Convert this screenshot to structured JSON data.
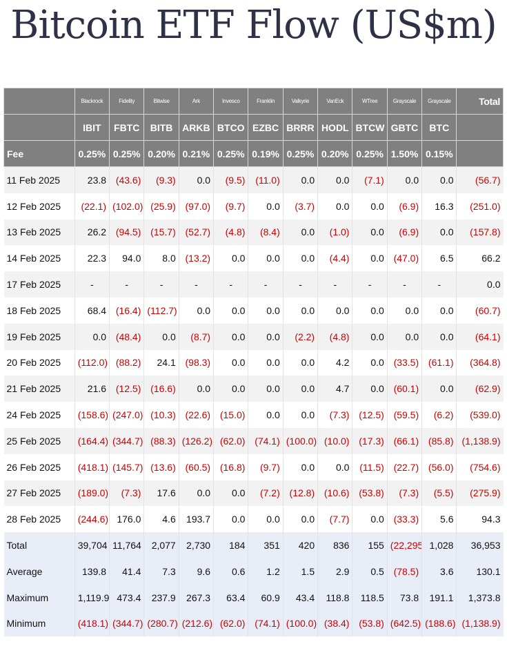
{
  "title": "Bitcoin ETF Flow (US$m)",
  "header": {
    "providers": [
      "Blackrock",
      "Fidelity",
      "Bitwise",
      "Ark",
      "Invesco",
      "Franklin",
      "Valkyrie",
      "VanEck",
      "WTree",
      "Grayscale",
      "Grayscale"
    ],
    "total_label": "Total",
    "tickers": [
      "IBIT",
      "FBTC",
      "BITB",
      "ARKB",
      "BTCO",
      "EZBC",
      "BRRR",
      "HODL",
      "BTCW",
      "GBTC",
      "BTC"
    ],
    "fee_label": "Fee",
    "fees": [
      "0.25%",
      "0.25%",
      "0.20%",
      "0.21%",
      "0.25%",
      "0.19%",
      "0.25%",
      "0.20%",
      "0.25%",
      "1.50%",
      "0.15%"
    ]
  },
  "rows": [
    {
      "date": "11 Feb 2025",
      "values": [
        "23.8",
        "(43.6)",
        "(9.3)",
        "0.0",
        "(9.5)",
        "(11.0)",
        "0.0",
        "0.0",
        "(7.1)",
        "0.0",
        "0.0"
      ],
      "total": "(56.7)"
    },
    {
      "date": "12 Feb 2025",
      "values": [
        "(22.1)",
        "(102.0)",
        "(25.9)",
        "(97.0)",
        "(9.7)",
        "0.0",
        "(3.7)",
        "0.0",
        "0.0",
        "(6.9)",
        "16.3"
      ],
      "total": "(251.0)"
    },
    {
      "date": "13 Feb 2025",
      "values": [
        "26.2",
        "(94.5)",
        "(15.7)",
        "(52.7)",
        "(4.8)",
        "(8.4)",
        "0.0",
        "(1.0)",
        "0.0",
        "(6.9)",
        "0.0"
      ],
      "total": "(157.8)"
    },
    {
      "date": "14 Feb 2025",
      "values": [
        "22.3",
        "94.0",
        "8.0",
        "(13.2)",
        "0.0",
        "0.0",
        "0.0",
        "(4.4)",
        "0.0",
        "(47.0)",
        "6.5"
      ],
      "total": "66.2"
    },
    {
      "date": "17 Feb 2025",
      "values": [
        "-",
        "-",
        "-",
        "-",
        "-",
        "-",
        "-",
        "-",
        "-",
        "-",
        "-"
      ],
      "total": "0.0"
    },
    {
      "date": "18 Feb 2025",
      "values": [
        "68.4",
        "(16.4)",
        "(112.7)",
        "0.0",
        "0.0",
        "0.0",
        "0.0",
        "0.0",
        "0.0",
        "0.0",
        "0.0"
      ],
      "total": "(60.7)"
    },
    {
      "date": "19 Feb 2025",
      "values": [
        "0.0",
        "(48.4)",
        "0.0",
        "(8.7)",
        "0.0",
        "0.0",
        "(2.2)",
        "(4.8)",
        "0.0",
        "0.0",
        "0.0"
      ],
      "total": "(64.1)"
    },
    {
      "date": "20 Feb 2025",
      "values": [
        "(112.0)",
        "(88.2)",
        "24.1",
        "(98.3)",
        "0.0",
        "0.0",
        "0.0",
        "4.2",
        "0.0",
        "(33.5)",
        "(61.1)"
      ],
      "total": "(364.8)"
    },
    {
      "date": "21 Feb 2025",
      "values": [
        "21.6",
        "(12.5)",
        "(16.6)",
        "0.0",
        "0.0",
        "0.0",
        "0.0",
        "4.7",
        "0.0",
        "(60.1)",
        "0.0"
      ],
      "total": "(62.9)"
    },
    {
      "date": "24 Feb 2025",
      "values": [
        "(158.6)",
        "(247.0)",
        "(10.3)",
        "(22.6)",
        "(15.0)",
        "0.0",
        "0.0",
        "(7.3)",
        "(12.5)",
        "(59.5)",
        "(6.2)"
      ],
      "total": "(539.0)"
    },
    {
      "date": "25 Feb 2025",
      "values": [
        "(164.4)",
        "(344.7)",
        "(88.3)",
        "(126.2)",
        "(62.0)",
        "(74.1)",
        "(100.0)",
        "(10.0)",
        "(17.3)",
        "(66.1)",
        "(85.8)"
      ],
      "total": "(1,138.9)"
    },
    {
      "date": "26 Feb 2025",
      "values": [
        "(418.1)",
        "(145.7)",
        "(13.6)",
        "(60.5)",
        "(16.8)",
        "(9.7)",
        "0.0",
        "0.0",
        "(11.5)",
        "(22.7)",
        "(56.0)"
      ],
      "total": "(754.6)"
    },
    {
      "date": "27 Feb 2025",
      "values": [
        "(189.0)",
        "(7.3)",
        "17.6",
        "0.0",
        "0.0",
        "(7.2)",
        "(12.8)",
        "(10.6)",
        "(53.8)",
        "(7.3)",
        "(5.5)"
      ],
      "total": "(275.9)"
    },
    {
      "date": "28 Feb 2025",
      "values": [
        "(244.6)",
        "176.0",
        "4.6",
        "193.7",
        "0.0",
        "0.0",
        "0.0",
        "(7.7)",
        "0.0",
        "(33.3)",
        "5.6"
      ],
      "total": "94.3"
    }
  ],
  "summary": [
    {
      "label": "Total",
      "values": [
        "39,704",
        "11,764",
        "2,077",
        "2,730",
        "184",
        "351",
        "420",
        "836",
        "155",
        "(22,295)",
        "1,028"
      ],
      "total": "36,953"
    },
    {
      "label": "Average",
      "values": [
        "139.8",
        "41.4",
        "7.3",
        "9.6",
        "0.6",
        "1.2",
        "1.5",
        "2.9",
        "0.5",
        "(78.5)",
        "3.6"
      ],
      "total": "130.1"
    },
    {
      "label": "Maximum",
      "values": [
        "1,119.9",
        "473.4",
        "237.9",
        "267.3",
        "63.4",
        "60.9",
        "43.4",
        "118.8",
        "118.5",
        "73.8",
        "191.1"
      ],
      "total": "1,373.8"
    },
    {
      "label": "Minimum",
      "values": [
        "(418.1)",
        "(344.7)",
        "(280.7)",
        "(212.6)",
        "(62.0)",
        "(74.1)",
        "(100.0)",
        "(38.4)",
        "(53.8)",
        "(642.5)",
        "(188.6)"
      ],
      "total": "(1,138.9)"
    }
  ],
  "colors": {
    "negative": "#cc0000",
    "header_bg": "#808080",
    "summary_bg": "#e8edf7",
    "title": "#2f3247"
  }
}
